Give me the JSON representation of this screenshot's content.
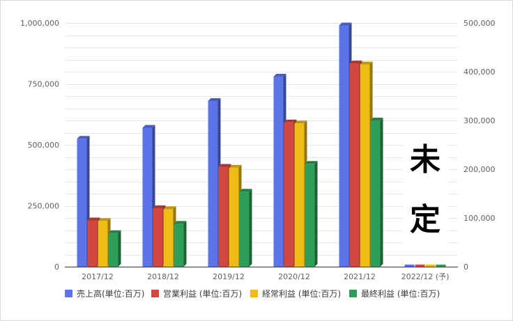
{
  "chart_data": {
    "type": "bar",
    "categories": [
      "2017/12",
      "2018/12",
      "2019/12",
      "2020/12",
      "2021/12",
      "2022/12 (予)"
    ],
    "series": [
      {
        "name": "売上高(単位:百万)",
        "axis": "left",
        "color": "#5b74ea",
        "values": [
          525000,
          570000,
          680000,
          780000,
          990000,
          0
        ]
      },
      {
        "name": "営業利益 (単位:百万)",
        "axis": "right",
        "color": "#d2473f",
        "values": [
          95000,
          120000,
          205000,
          296000,
          417000,
          0
        ]
      },
      {
        "name": "経常利益 (単位:百万)",
        "axis": "right",
        "color": "#efbc16",
        "values": [
          94000,
          118000,
          203000,
          294000,
          415000,
          0
        ]
      },
      {
        "name": "最終利益 (単位:百万)",
        "axis": "right",
        "color": "#2e9e58",
        "values": [
          69000,
          88000,
          154000,
          211000,
          300000,
          0
        ]
      }
    ],
    "left_axis": {
      "ylim": [
        0,
        1000000
      ],
      "ticks": [
        "0",
        "250,000",
        "500,000",
        "750,000",
        "1,000,000"
      ]
    },
    "right_axis": {
      "ylim": [
        0,
        500000
      ],
      "ticks": [
        "0",
        "100,000",
        "200,000",
        "300,000",
        "400,000",
        "500,000"
      ]
    },
    "grid": true,
    "legend_position": "bottom",
    "annotation": [
      "未",
      "定"
    ]
  }
}
